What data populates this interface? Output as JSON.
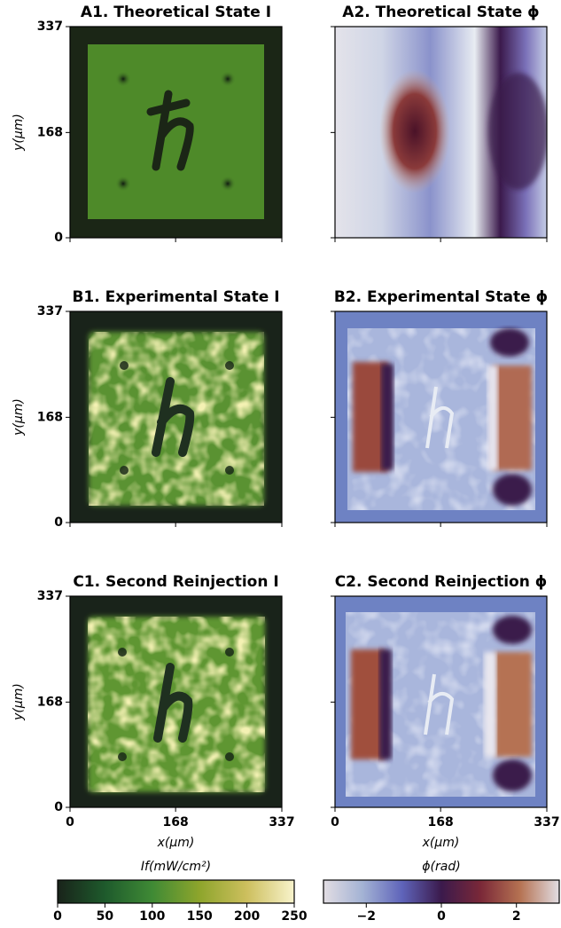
{
  "chart_data": [
    {
      "type": "heatmap",
      "title": "A1. Theoretical State I",
      "xlim": [
        0,
        337
      ],
      "ylim": [
        0,
        337
      ],
      "xticks": [
        0,
        168,
        337
      ],
      "yticks": [
        0,
        168,
        337
      ],
      "ylabel": "y(μm)",
      "tick_labels": {
        "x": false,
        "y": true
      }
    },
    {
      "type": "heatmap",
      "title": "A2. Theoretical State ϕ",
      "xlim": [
        0,
        337
      ],
      "ylim": [
        0,
        337
      ],
      "xticks": [
        0,
        168,
        337
      ],
      "yticks": [
        0,
        168,
        337
      ],
      "tick_labels": {
        "x": false,
        "y": false
      }
    },
    {
      "type": "heatmap",
      "title": "B1. Experimental State I",
      "xlim": [
        0,
        337
      ],
      "ylim": [
        0,
        337
      ],
      "xticks": [
        0,
        168,
        337
      ],
      "yticks": [
        0,
        168,
        337
      ],
      "ylabel": "y(μm)",
      "tick_labels": {
        "x": false,
        "y": true
      }
    },
    {
      "type": "heatmap",
      "title": "B2. Experimental State ϕ",
      "xlim": [
        0,
        337
      ],
      "ylim": [
        0,
        337
      ],
      "xticks": [
        0,
        168,
        337
      ],
      "yticks": [
        0,
        168,
        337
      ],
      "tick_labels": {
        "x": false,
        "y": false
      }
    },
    {
      "type": "heatmap",
      "title": "C1. Second Reinjection I",
      "xlim": [
        0,
        337
      ],
      "ylim": [
        0,
        337
      ],
      "xticks": [
        0,
        168,
        337
      ],
      "yticks": [
        0,
        168,
        337
      ],
      "ylabel": "y(μm)",
      "xlabel": "x(μm)",
      "tick_labels": {
        "x": true,
        "y": true
      }
    },
    {
      "type": "heatmap",
      "title": "C2. Second Reinjection ϕ",
      "xlim": [
        0,
        337
      ],
      "ylim": [
        0,
        337
      ],
      "xticks": [
        0,
        168,
        337
      ],
      "yticks": [
        0,
        168,
        337
      ],
      "xlabel": "x(μm)",
      "tick_labels": {
        "x": true,
        "y": false
      }
    },
    {
      "type": "colorbar",
      "label": "If(mW/cm²)",
      "lim": [
        0,
        250
      ],
      "ticks": [
        0,
        50,
        100,
        150,
        200,
        250
      ],
      "colors": [
        "#19231a",
        "#1e5a2c",
        "#3f8a35",
        "#8ea52c",
        "#cdbf5e",
        "#f8f3cc"
      ]
    },
    {
      "type": "colorbar",
      "label": "ϕ(rad)",
      "lim": [
        -3.14,
        3.14
      ],
      "ticks": [
        {
          "value": -2,
          "label": "−2"
        },
        0,
        2
      ],
      "colors": [
        "#e2dde3",
        "#a3b2d4",
        "#5f64ba",
        "#3b1a4c",
        "#7a2838",
        "#b57252",
        "#e2dde3"
      ]
    }
  ]
}
